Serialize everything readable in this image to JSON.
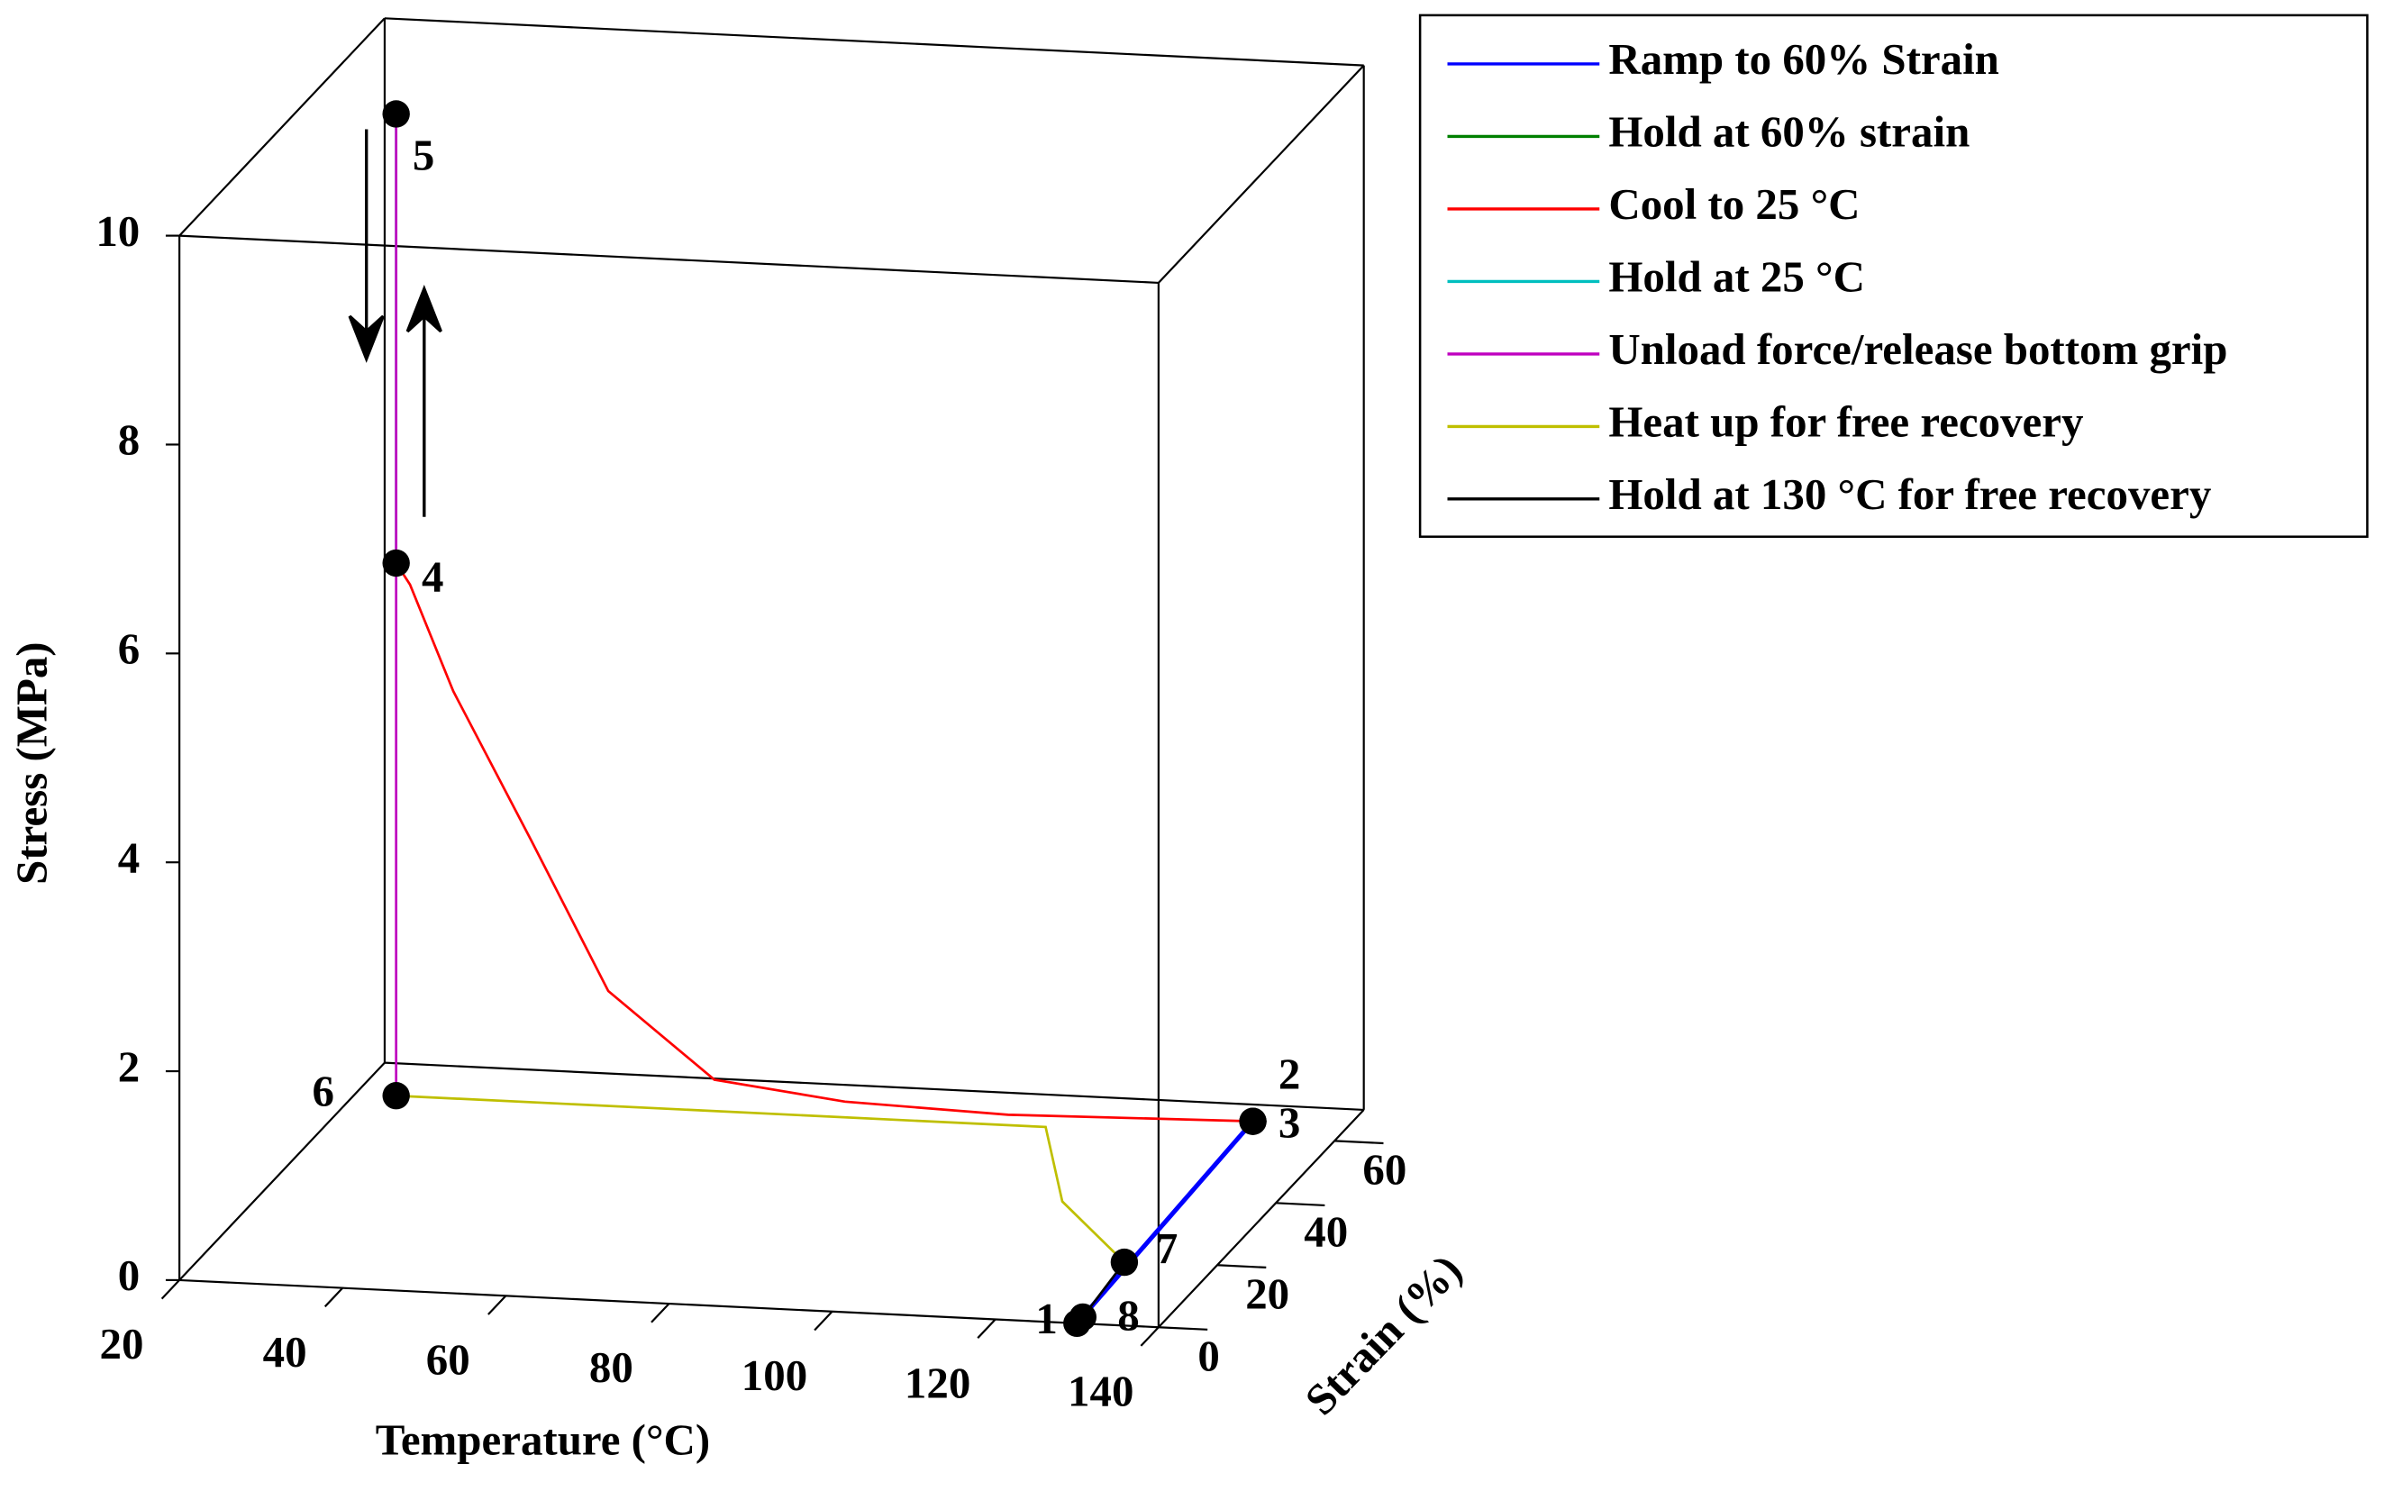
{
  "chart_data": {
    "type": "line3d",
    "xlabel": "Temperature (°C)",
    "ylabel": "Strain (%)",
    "zlabel": "Stress (MPa)",
    "xlim": [
      20,
      140
    ],
    "xticks": [
      20,
      40,
      60,
      80,
      100,
      120,
      140
    ],
    "ylim": [
      0,
      70
    ],
    "yticks": [
      0,
      20,
      40,
      60
    ],
    "zlim": [
      0,
      10
    ],
    "zticks": [
      0,
      2,
      4,
      6,
      8,
      10
    ],
    "series": [
      {
        "name": "Ramp to 60% Strain",
        "color": "#0000ff",
        "x": [
          130,
          130
        ],
        "y": [
          0,
          60
        ],
        "z": [
          0,
          0.15
        ]
      },
      {
        "name": "Hold at 60% strain",
        "color": "#008000",
        "x": [
          130,
          130
        ],
        "y": [
          60,
          60
        ],
        "z": [
          0.15,
          0.15
        ]
      },
      {
        "name": "Cool to 25 °C",
        "color": "#ff0000",
        "x": [
          130,
          100,
          80,
          64,
          51,
          41.6,
          32,
          26.7,
          25
        ],
        "y": [
          60,
          60,
          60,
          60,
          60,
          60,
          60,
          60,
          60
        ],
        "z": [
          0.15,
          0.1,
          0.15,
          0.3,
          1.1,
          2.5,
          3.9,
          4.9,
          5.1
        ]
      },
      {
        "name": "Hold at 25 °C",
        "color": "#00bfbf",
        "x": [
          25,
          25
        ],
        "y": [
          60,
          60
        ],
        "z": [
          5.1,
          9.4
        ]
      },
      {
        "name": "Unload force/release bottom grip",
        "color": "#bf00bf",
        "x": [
          25,
          25
        ],
        "y": [
          60,
          60
        ],
        "z": [
          9.4,
          0
        ]
      },
      {
        "name": "Heat up for free recovery",
        "color": "#bfbf00",
        "x": [
          25,
          104.6,
          114.8,
          128.8
        ],
        "y": [
          60,
          60,
          37.3,
          19.5
        ],
        "z": [
          0,
          0,
          0,
          0
        ]
      },
      {
        "name": "Hold at 130 °C for free recovery",
        "color": "#000000",
        "x": [
          128.8,
          130
        ],
        "y": [
          19.5,
          2
        ],
        "z": [
          0,
          0
        ]
      }
    ],
    "markers": [
      {
        "label": "1",
        "x": 130,
        "y": 0,
        "z": 0
      },
      {
        "label": "2",
        "x": 130,
        "y": 60,
        "z": 0.15
      },
      {
        "label": "3",
        "x": 130,
        "y": 60,
        "z": 0.15
      },
      {
        "label": "4",
        "x": 25,
        "y": 60,
        "z": 5.1
      },
      {
        "label": "5",
        "x": 25,
        "y": 60,
        "z": 9.4
      },
      {
        "label": "6",
        "x": 25,
        "y": 60,
        "z": 0
      },
      {
        "label": "7",
        "x": 128.8,
        "y": 19.5,
        "z": 0
      },
      {
        "label": "8",
        "x": 130,
        "y": 2,
        "z": 0
      }
    ]
  }
}
